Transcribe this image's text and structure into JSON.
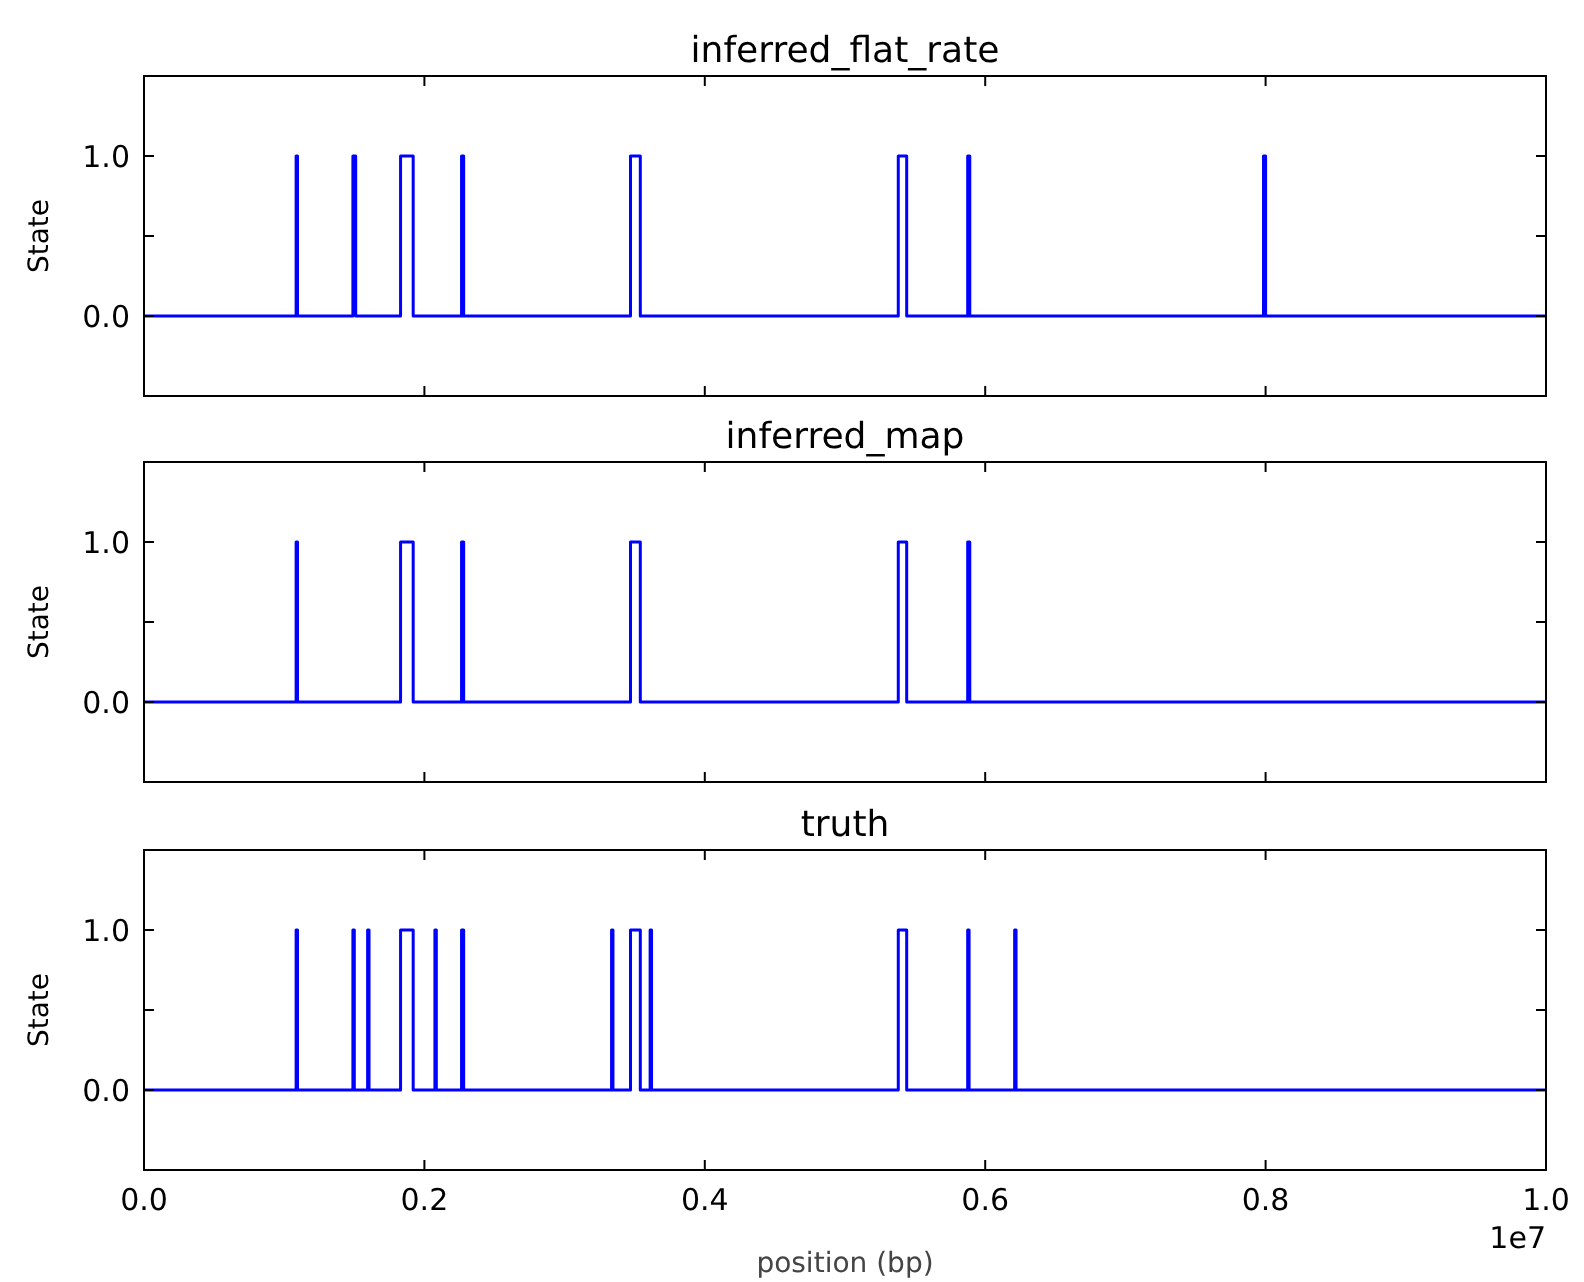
{
  "chart_data": [
    {
      "type": "step",
      "title": "inferred_flat_rate",
      "ylabel": "State",
      "xlim": [
        0,
        1
      ],
      "xticks": [
        {
          "value": 0,
          "label": null
        },
        {
          "value": 0.2,
          "label": null
        },
        {
          "value": 0.4,
          "label": null
        },
        {
          "value": 0.6,
          "label": null
        },
        {
          "value": 0.8,
          "label": null
        },
        {
          "value": 1,
          "label": null
        }
      ],
      "ylim": [
        -0.5,
        1.5
      ],
      "yticks": [
        {
          "value": 0,
          "label": "0.0"
        },
        {
          "value": 0.5,
          "label": null
        },
        {
          "value": 1,
          "label": "1.0"
        }
      ],
      "tick_labels": "y",
      "series": [
        {
          "color": "#0000ff",
          "x": [
            0,
            0.1085,
            0.1095,
            0.149,
            0.151,
            0.183,
            0.192,
            0.2265,
            0.228,
            0.347,
            0.354,
            0.538,
            0.544,
            0.5875,
            0.589,
            0.7985,
            0.8,
            1
          ],
          "values": [
            0,
            1,
            0,
            1,
            0,
            1,
            0,
            1,
            0,
            1,
            0,
            1,
            0,
            1,
            0,
            1,
            0,
            0
          ]
        }
      ]
    },
    {
      "type": "step",
      "title": "inferred_map",
      "ylabel": "State",
      "xlim": [
        0,
        1
      ],
      "xticks": [
        {
          "value": 0,
          "label": null
        },
        {
          "value": 0.2,
          "label": null
        },
        {
          "value": 0.4,
          "label": null
        },
        {
          "value": 0.6,
          "label": null
        },
        {
          "value": 0.8,
          "label": null
        },
        {
          "value": 1,
          "label": null
        }
      ],
      "ylim": [
        -0.5,
        1.5
      ],
      "yticks": [
        {
          "value": 0,
          "label": "0.0"
        },
        {
          "value": 0.5,
          "label": null
        },
        {
          "value": 1,
          "label": "1.0"
        }
      ],
      "tick_labels": "y",
      "series": [
        {
          "color": "#0000ff",
          "x": [
            0,
            0.1085,
            0.1095,
            0.183,
            0.192,
            0.2265,
            0.228,
            0.347,
            0.354,
            0.538,
            0.544,
            0.5875,
            0.589,
            1
          ],
          "values": [
            0,
            1,
            0,
            1,
            0,
            1,
            0,
            1,
            0,
            1,
            0,
            1,
            0,
            0
          ]
        }
      ]
    },
    {
      "type": "step",
      "title": "truth",
      "ylabel": "State",
      "xlabel": "position (bp)",
      "annotations": [
        "1e7"
      ],
      "xlim": [
        0,
        1
      ],
      "xticks": [
        {
          "value": 0,
          "label": "0.0"
        },
        0.2,
        0.4,
        0.6,
        0.8,
        {
          "value": 1,
          "label": "1.0"
        }
      ],
      "ylim": [
        -0.5,
        1.5
      ],
      "yticks": [
        {
          "value": 0,
          "label": "0.0"
        },
        {
          "value": 0.5,
          "label": null
        },
        {
          "value": 1,
          "label": "1.0"
        }
      ],
      "series": [
        {
          "color": "#0000ff",
          "x": [
            0,
            0.1085,
            0.1095,
            0.149,
            0.15,
            0.1595,
            0.1605,
            0.183,
            0.192,
            0.2075,
            0.2085,
            0.2265,
            0.228,
            0.3335,
            0.3345,
            0.347,
            0.354,
            0.361,
            0.362,
            0.538,
            0.544,
            0.5875,
            0.5885,
            0.621,
            0.622,
            1
          ],
          "values": [
            0,
            1,
            0,
            1,
            0,
            1,
            0,
            1,
            0,
            1,
            0,
            1,
            0,
            1,
            0,
            1,
            0,
            1,
            0,
            1,
            0,
            1,
            0,
            1,
            0,
            0
          ]
        }
      ]
    }
  ]
}
